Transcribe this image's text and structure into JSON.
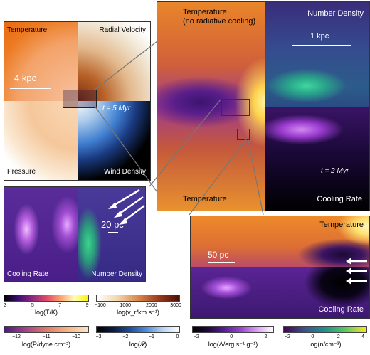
{
  "top_left": {
    "temperature": "Temperature",
    "radial_velocity": "Radial Velocity",
    "scale": "4 kpc",
    "time": "t = 5 Myr",
    "pressure": "Pressure",
    "wind_density": "Wind Density"
  },
  "top_right": {
    "temperature": "Temperature",
    "no_cooling": "(no radiative cooling)",
    "number_density": "Number Density",
    "scale": "1 kpc",
    "time": "t = 2 Myr",
    "temperature_bottom": "Temperature",
    "cooling_rate": "Cooling Rate"
  },
  "mid_left": {
    "scale": "20 pc",
    "cooling_rate": "Cooling Rate",
    "number_density": "Number Density"
  },
  "bottom_right": {
    "temperature": "Temperature",
    "scale": "50 pc",
    "cooling_rate": "Cooling Rate"
  },
  "colorbars": [
    {
      "title": "log(T/K)",
      "ticks": [
        "3",
        "5",
        "7",
        "9"
      ]
    },
    {
      "title": "log(v_r/km s⁻¹)",
      "ticks": [
        "−100",
        "1000",
        "2000",
        "3000"
      ]
    },
    {
      "title": "log(P/dyne cm⁻²)",
      "ticks": [
        "−12",
        "−11",
        "−10"
      ]
    },
    {
      "title": "log(𝒫)",
      "ticks": [
        "−3",
        "−2",
        "−1",
        "0"
      ]
    },
    {
      "title": "log(Λ/erg s⁻¹ g⁻¹)",
      "ticks": [
        "−2",
        "0",
        "2"
      ]
    },
    {
      "title": "log(n/cm⁻³)",
      "ticks": [
        "−2",
        "0",
        "2",
        "4"
      ]
    }
  ]
}
